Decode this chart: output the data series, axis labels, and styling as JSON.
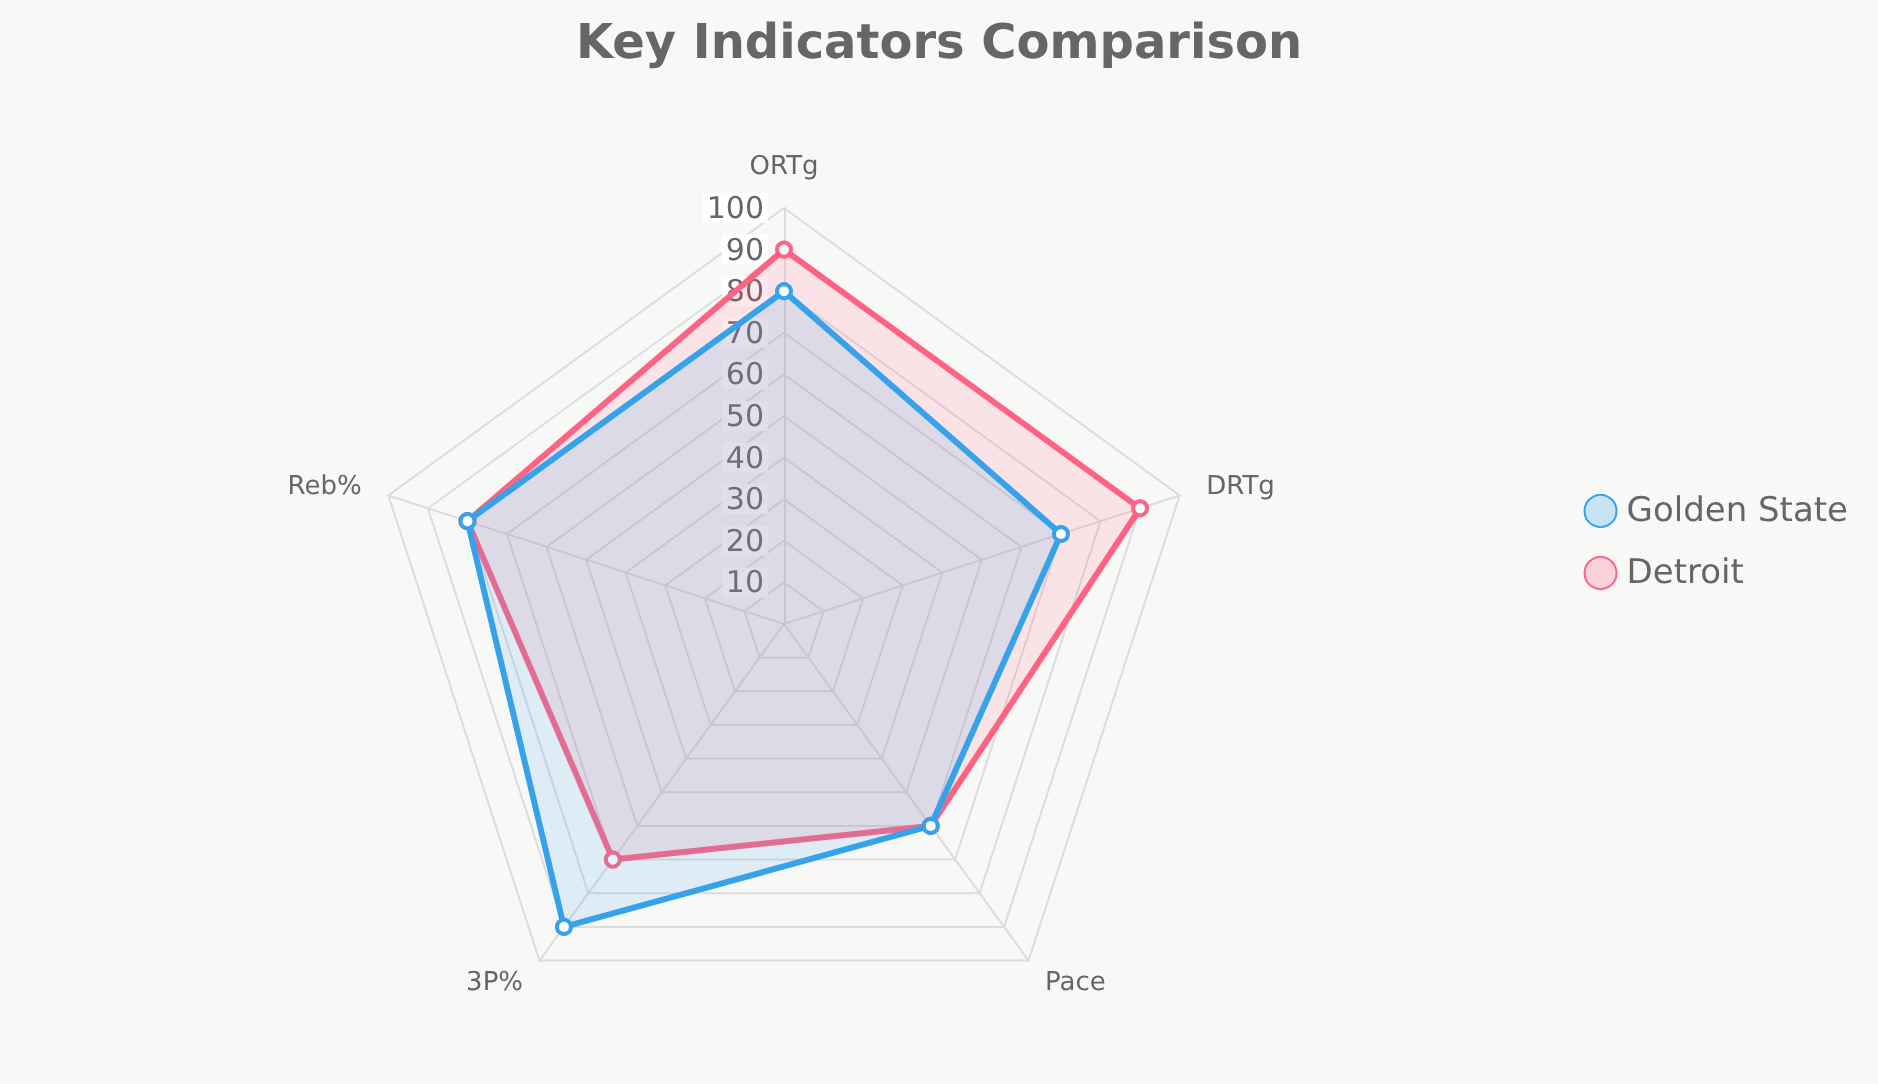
{
  "chart_data": {
    "type": "radar",
    "title": "Key Indicators Comparison",
    "categories": [
      "ORTg",
      "DRTg",
      "Pace",
      "3P%",
      "Reb%"
    ],
    "ylim": [
      0,
      100
    ],
    "yticks": [
      10,
      20,
      30,
      40,
      50,
      60,
      70,
      80,
      90,
      100
    ],
    "legend": "right",
    "marker": "circle",
    "grid": true,
    "series": [
      {
        "name": "Golden State",
        "color": "#36a2eb",
        "values": [
          80,
          70,
          60,
          90,
          80
        ]
      },
      {
        "name": "Detroit",
        "color": "#ff6384",
        "values": [
          90,
          90,
          60,
          70,
          80
        ]
      }
    ]
  }
}
